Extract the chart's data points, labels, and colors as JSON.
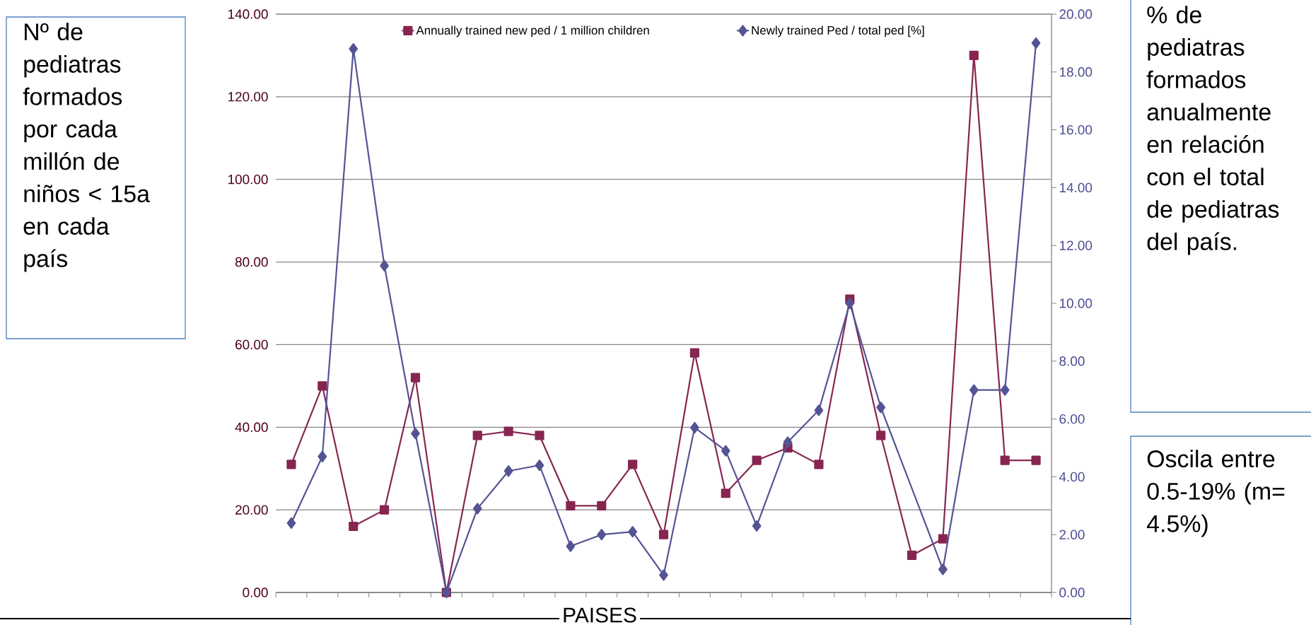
{
  "chart_data": {
    "type": "line",
    "ylabel": "Nº de pediatras formados por cada millón de niños < 15a en cada país",
    "y2label": "% de pediatras formados anualmente en relación con el total de pediatras del país.",
    "xlabel": "PAISES",
    "annotations": [
      "Oscila entre 0.5-19% (m= 4.5%)"
    ],
    "categories": [
      null,
      null,
      null,
      null,
      null,
      null,
      null,
      null,
      null,
      null,
      null,
      null,
      null,
      null,
      null,
      null,
      null,
      null,
      null,
      null,
      null,
      null,
      null,
      null,
      null
    ],
    "series": [
      {
        "name": "Annually trained new ped / 1 million children",
        "color": "#862650",
        "marker": "square",
        "values": [
          31,
          50,
          16,
          20,
          52,
          0,
          38,
          39,
          38,
          21,
          21,
          31,
          14,
          58,
          24,
          32,
          35,
          31,
          71,
          38,
          9,
          13,
          130,
          32,
          32
        ]
      },
      {
        "name": "Newly trained Ped / total ped [%]",
        "color": "#545494",
        "marker": "diamond",
        "axis": "y2",
        "values": [
          2.4,
          4.7,
          18.8,
          11.3,
          5.5,
          0,
          2.9,
          4.2,
          4.4,
          1.6,
          2.0,
          2.1,
          0.6,
          5.7,
          4.9,
          2.3,
          5.2,
          6.3,
          10.0,
          6.4,
          null,
          0.8,
          7.0,
          7.0,
          19.0
        ]
      }
    ],
    "ylim": [
      0,
      140
    ],
    "yticks": [
      {
        "value": 0,
        "label": "0.00"
      },
      {
        "value": 20,
        "label": "20.00"
      },
      {
        "value": 40,
        "label": "40.00"
      },
      {
        "value": 60,
        "label": "60.00"
      },
      {
        "value": 80,
        "label": "80.00"
      },
      {
        "value": 100,
        "label": "100.00"
      },
      {
        "value": 120,
        "label": "120.00"
      },
      {
        "value": 140,
        "label": "140.00"
      }
    ],
    "y2lim": [
      0,
      20
    ],
    "y2ticks": [
      {
        "value": 0,
        "label": "0.00"
      },
      {
        "value": 2,
        "label": "2.00"
      },
      {
        "value": 4,
        "label": "4.00"
      },
      {
        "value": 6,
        "label": "6.00"
      },
      {
        "value": 8,
        "label": "8.00"
      },
      {
        "value": 10,
        "label": "10.00"
      },
      {
        "value": 12,
        "label": "12.00"
      },
      {
        "value": 14,
        "label": "14.00"
      },
      {
        "value": 16,
        "label": "16.00"
      },
      {
        "value": 18,
        "label": "18.00"
      },
      {
        "value": 20,
        "label": "20.00"
      }
    ],
    "grid": "y",
    "legend": "top"
  }
}
